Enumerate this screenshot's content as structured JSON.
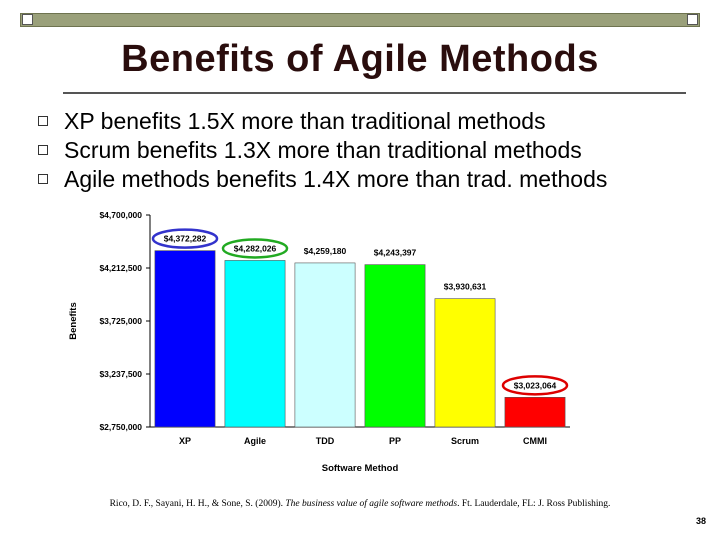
{
  "slide": {
    "title": "Benefits of Agile Methods",
    "bullets": [
      "XP benefits 1.5X more than traditional methods",
      "Scrum benefits 1.3X more than traditional methods",
      "Agile methods benefits 1.4X more than trad. methods"
    ],
    "citation_plain_1": "Rico, D. F., Sayani, H. H., & Sone, S. (2009). ",
    "citation_italic": "The business value of agile software methods",
    "citation_plain_2": ". Ft. Lauderdale, FL: J. Ross Publishing.",
    "page_number": "38"
  },
  "chart_data": {
    "type": "bar",
    "title": "",
    "xlabel": "Software Method",
    "ylabel": "Benefits",
    "categories": [
      "XP",
      "Agile",
      "TDD",
      "PP",
      "Scrum",
      "CMMI"
    ],
    "values": [
      4372282,
      4282026,
      4259180,
      4243397,
      3930631,
      3023064
    ],
    "value_labels": [
      "$4,372,282",
      "$4,282,026",
      "$4,259,180",
      "$4,243,397",
      "$3,930,631",
      "$3,023,064"
    ],
    "colors": [
      "#0000ff",
      "#00ffff",
      "#ccffff",
      "#00ff00",
      "#ffff00",
      "#ff0000"
    ],
    "highlight_circles": {
      "XP": "#3333cc",
      "Agile": "#22aa22",
      "CMMI": "#dd0000"
    },
    "ylim": [
      2750000,
      4700000
    ],
    "yticks": [
      2750000,
      3237500,
      3725000,
      4212500,
      4700000
    ],
    "ytick_labels": [
      "$2,750,000",
      "$3,237,500",
      "$3,725,000",
      "$4,212,500",
      "$4,700,000"
    ],
    "grid": false,
    "legend": "none"
  },
  "colors": {
    "top_bar": "#9aa07a",
    "title_text": "#2a0d0d"
  }
}
